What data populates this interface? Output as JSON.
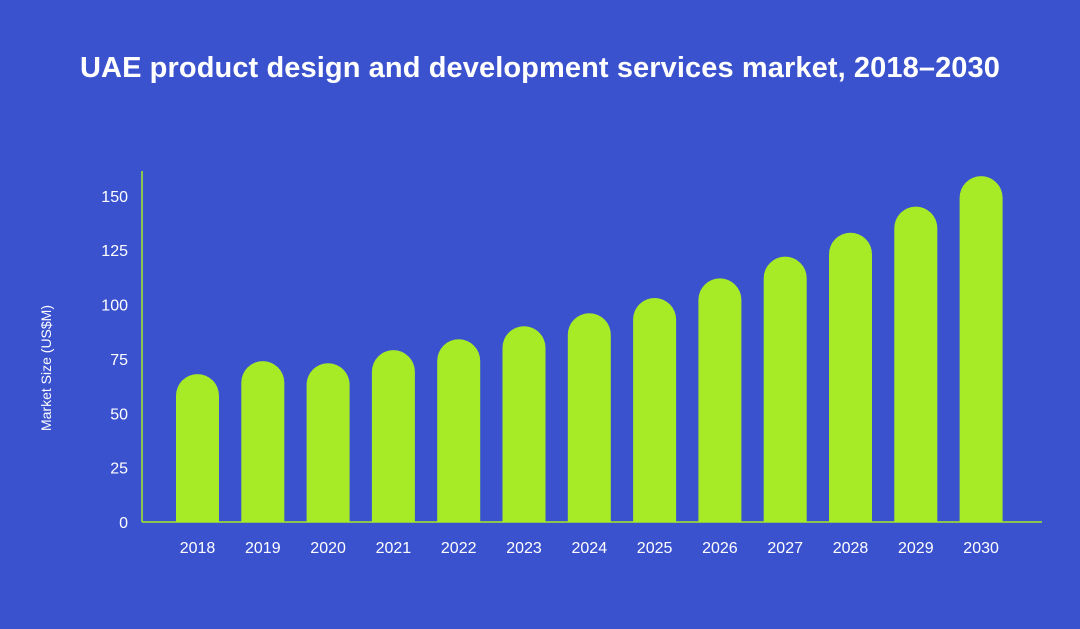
{
  "chart_data": {
    "type": "bar",
    "title": "UAE product design and development services market, 2018–2030",
    "xlabel": "",
    "ylabel": "Market Size (US$M)",
    "categories": [
      "2018",
      "2019",
      "2020",
      "2021",
      "2022",
      "2023",
      "2024",
      "2025",
      "2026",
      "2027",
      "2028",
      "2029",
      "2030"
    ],
    "values": [
      68,
      74,
      73,
      79,
      84,
      90,
      96,
      103,
      112,
      122,
      133,
      145,
      159
    ],
    "yticks": [
      0,
      25,
      50,
      75,
      100,
      125,
      150
    ],
    "ylim": [
      0,
      160
    ],
    "grid": false,
    "legend": "none"
  },
  "colors": {
    "background": "#3B52CF",
    "bar": "#A6EB26",
    "axis": "#A6EB26",
    "text": "#FFFFFF"
  }
}
